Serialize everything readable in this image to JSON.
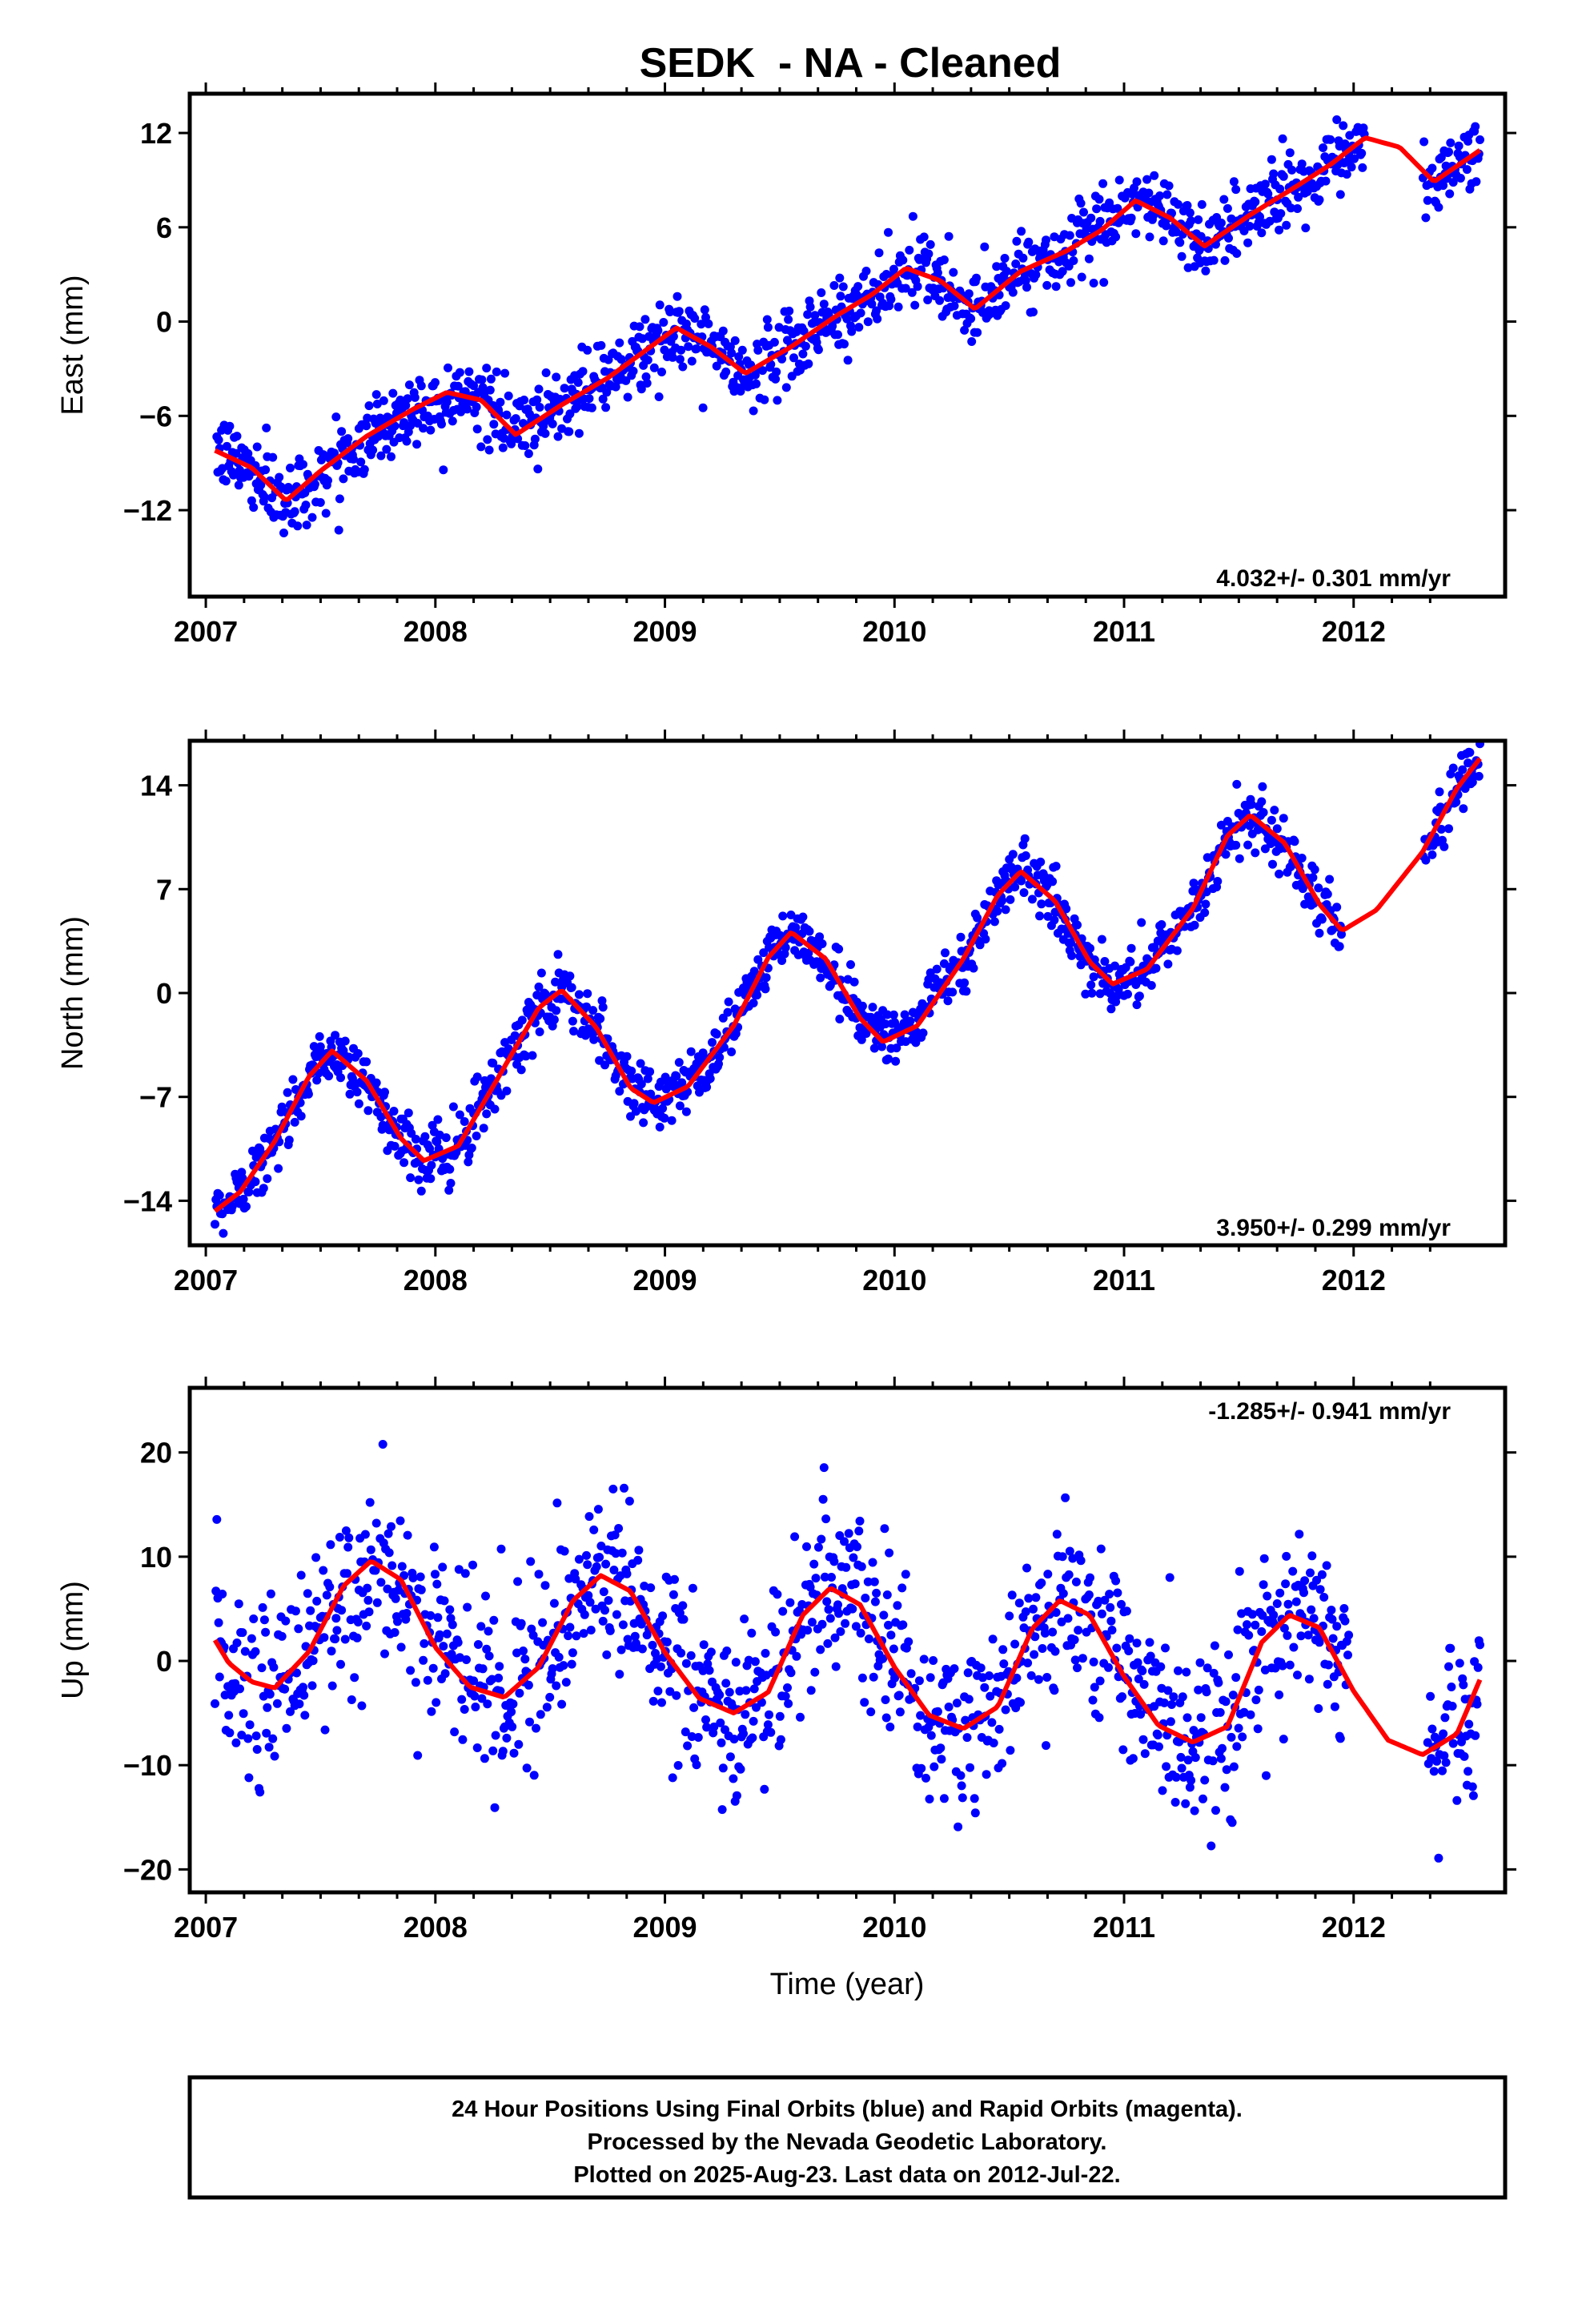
{
  "title": "SEDK  - NA - Cleaned",
  "xlabel": "Time (year)",
  "footer": {
    "line1": "24 Hour Positions Using Final Orbits (blue) and Rapid Orbits (magenta).",
    "line2": "Processed by the Nevada Geodetic Laboratory.",
    "line3": "Plotted on 2025-Aug-23. Last data on 2012-Jul-22."
  },
  "colors": {
    "data_points": "#0000ff",
    "model_fit": "#ff0000",
    "frame": "#000000"
  },
  "chart_data": [
    {
      "type": "scatter",
      "name": "east",
      "ylabel": "East (mm)",
      "rate": "4.032+/- 0.301 mm/yr",
      "rate_position": "bottom-right",
      "xlim": [
        2006.93,
        2012.66
      ],
      "ylim": [
        -17.5,
        14.5
      ],
      "x_ticks": [
        2007,
        2008,
        2009,
        2010,
        2011,
        2012
      ],
      "x_tick_labels": [
        "2007",
        "2008",
        "2009",
        "2010",
        "2011",
        "2012"
      ],
      "y_ticks": [
        12,
        6,
        0,
        -6,
        -12
      ],
      "y_tick_labels": [
        "12",
        "6",
        "0",
        "−6",
        "−12"
      ],
      "grid": false,
      "data_range": [
        2007.04,
        2012.55
      ],
      "data_gap": [
        2012.05,
        2012.3
      ],
      "model_fit": {
        "x": [
          2007.04,
          2007.2,
          2007.35,
          2007.5,
          2007.7,
          2007.9,
          2008.05,
          2008.2,
          2008.35,
          2008.55,
          2008.75,
          2008.9,
          2009.05,
          2009.2,
          2009.35,
          2009.55,
          2009.75,
          2009.9,
          2010.05,
          2010.2,
          2010.35,
          2010.55,
          2010.75,
          2010.9,
          2011.05,
          2011.2,
          2011.35,
          2011.55,
          2011.75,
          2011.9,
          2012.05,
          2012.2,
          2012.35,
          2012.55
        ],
        "y": [
          -8.2,
          -9.3,
          -11.4,
          -9.5,
          -7.3,
          -5.6,
          -4.5,
          -5.0,
          -7.2,
          -5.3,
          -3.6,
          -2.0,
          -0.4,
          -1.6,
          -3.3,
          -1.6,
          0.4,
          1.7,
          3.4,
          2.6,
          0.8,
          3.2,
          4.5,
          5.8,
          7.7,
          6.6,
          4.8,
          6.8,
          8.6,
          10.0,
          11.7,
          11.1,
          8.9,
          10.9
        ]
      },
      "points": {
        "count": 1380,
        "trend_offset_at_2007": -9.0,
        "rate_mm_per_yr": 4.032,
        "scatter_sd_mm": 1.15
      }
    },
    {
      "type": "scatter",
      "name": "north",
      "ylabel": "North (mm)",
      "rate": "3.950+/- 0.299 mm/yr",
      "rate_position": "bottom-right",
      "xlim": [
        2006.93,
        2012.66
      ],
      "ylim": [
        -17,
        17
      ],
      "x_ticks": [
        2007,
        2008,
        2009,
        2010,
        2011,
        2012
      ],
      "x_tick_labels": [
        "2007",
        "2008",
        "2009",
        "2010",
        "2011",
        "2012"
      ],
      "y_ticks": [
        14,
        7,
        0,
        -7,
        -14
      ],
      "y_tick_labels": [
        "14",
        "7",
        "0",
        "−7",
        "−14"
      ],
      "grid": false,
      "data_range": [
        2007.04,
        2012.55
      ],
      "data_gap": [
        2011.95,
        2012.3
      ],
      "model_fit": {
        "x": [
          2007.04,
          2007.15,
          2007.3,
          2007.45,
          2007.55,
          2007.7,
          2007.85,
          2007.95,
          2008.1,
          2008.3,
          2008.45,
          2008.55,
          2008.7,
          2008.85,
          2008.95,
          2009.1,
          2009.3,
          2009.45,
          2009.55,
          2009.7,
          2009.85,
          2009.95,
          2010.1,
          2010.3,
          2010.45,
          2010.55,
          2010.7,
          2010.85,
          2010.95,
          2011.1,
          2011.3,
          2011.45,
          2011.55,
          2011.7,
          2011.85,
          2011.95,
          2012.1,
          2012.3,
          2012.45,
          2012.55
        ],
        "y": [
          -14.7,
          -13.4,
          -10.0,
          -5.6,
          -3.9,
          -5.9,
          -9.8,
          -11.3,
          -10.3,
          -5.0,
          -1.0,
          0.2,
          -2.3,
          -6.4,
          -7.4,
          -6.3,
          -2.2,
          2.4,
          4.1,
          2.3,
          -1.7,
          -3.3,
          -2.2,
          2.3,
          6.6,
          8.2,
          6.2,
          2.1,
          0.6,
          1.6,
          5.7,
          10.6,
          12.0,
          10.1,
          6.0,
          4.2,
          5.6,
          9.5,
          13.8,
          15.8
        ]
      },
      "points": {
        "count": 1380,
        "scatter_sd_mm": 1.0
      }
    },
    {
      "type": "scatter",
      "name": "up",
      "ylabel": "Up (mm)",
      "rate": "-1.285+/- 0.941 mm/yr",
      "rate_position": "top-right",
      "xlim": [
        2006.93,
        2012.66
      ],
      "ylim": [
        -22.2,
        26.2
      ],
      "x_ticks": [
        2007,
        2008,
        2009,
        2010,
        2011,
        2012
      ],
      "x_tick_labels": [
        "2007",
        "2008",
        "2009",
        "2010",
        "2011",
        "2012"
      ],
      "y_ticks": [
        20,
        10,
        0,
        -10,
        -20
      ],
      "y_tick_labels": [
        "20",
        "10",
        "0",
        "−10",
        "−20"
      ],
      "grid": false,
      "data_range": [
        2007.04,
        2012.55
      ],
      "data_gap": [
        2011.98,
        2012.32
      ],
      "model_fit": {
        "x": [
          2007.04,
          2007.1,
          2007.2,
          2007.3,
          2007.45,
          2007.6,
          2007.72,
          2007.85,
          2008.0,
          2008.15,
          2008.3,
          2008.45,
          2008.6,
          2008.72,
          2008.85,
          2009.0,
          2009.15,
          2009.3,
          2009.45,
          2009.6,
          2009.72,
          2009.85,
          2010.0,
          2010.15,
          2010.3,
          2010.45,
          2010.6,
          2010.72,
          2010.85,
          2011.0,
          2011.15,
          2011.3,
          2011.45,
          2011.6,
          2011.72,
          2011.85,
          2012.0,
          2012.15,
          2012.3,
          2012.45,
          2012.55
        ],
        "y": [
          2.0,
          -0.2,
          -2.0,
          -2.6,
          0.9,
          7.2,
          9.6,
          7.8,
          1.3,
          -2.5,
          -3.5,
          -0.6,
          5.8,
          8.2,
          6.7,
          0.8,
          -3.6,
          -5.0,
          -3.0,
          4.4,
          7.0,
          5.4,
          -0.6,
          -5.2,
          -6.5,
          -4.4,
          3.1,
          5.8,
          4.4,
          -1.5,
          -6.2,
          -7.8,
          -6.3,
          1.8,
          4.4,
          3.2,
          -2.9,
          -7.6,
          -9.0,
          -7.0,
          -1.8
        ]
      },
      "points": {
        "count": 1380,
        "scatter_sd_mm": 4.3
      }
    }
  ]
}
